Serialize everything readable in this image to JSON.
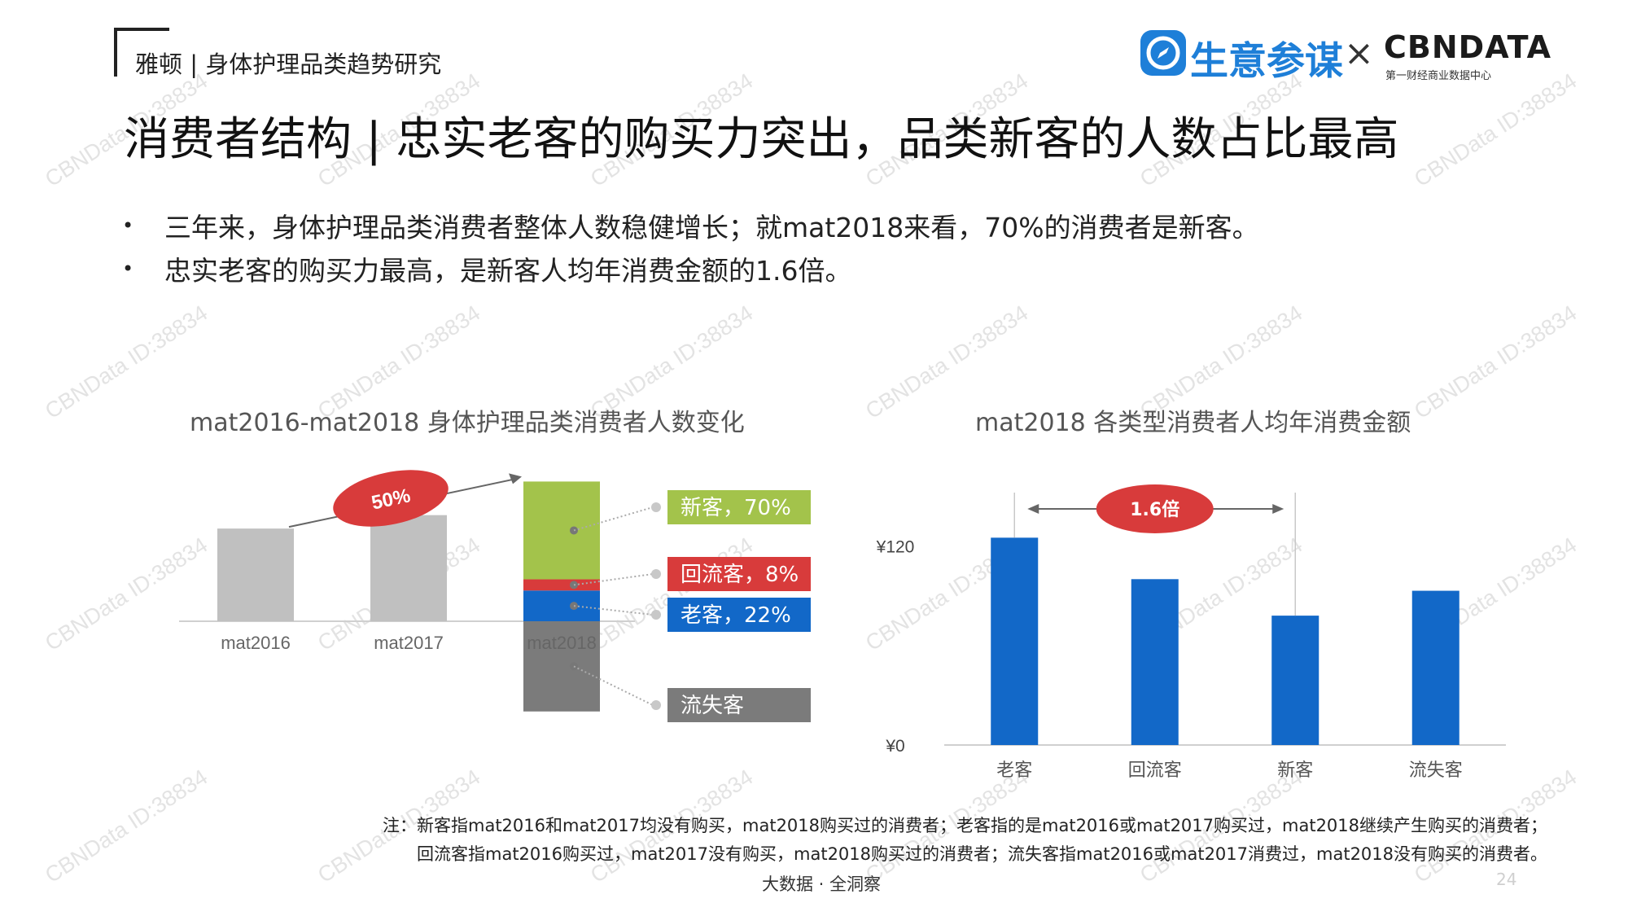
{
  "header": {
    "report_tag": "雅顿 | 身体护理品类趋势研究",
    "title": "消费者结构 | 忠实老客的购买力突出，品类新客的人数占比最高",
    "brand": "生意参谋",
    "times": "×",
    "partner": "CBNDATA",
    "partner_sub": "第一财经商业数据中心"
  },
  "bullets": [
    "三年来，身体护理品类消费者整体人数稳健增长；就mat2018来看，70%的消费者是新客。",
    "忠实老客的购买力最高，是新客人均年消费金额的1.6倍。"
  ],
  "bullet_symbol": "•",
  "watermark": "CBNData ID:38834",
  "colors": {
    "gray_bar": "#c0c0c0",
    "new": "#a3c34b",
    "returning": "#d83b3b",
    "old": "#1268c8",
    "lost": "#7b7b7b",
    "blue_bar": "#1268c8",
    "red_ellipse": "#d83b3b"
  },
  "chart_data": [
    {
      "type": "bar",
      "title": "mat2016-mat2018 身体护理品类消费者人数变化",
      "categories": [
        "mat2016",
        "mat2017",
        "mat2018"
      ],
      "values": [
        0.69,
        0.79,
        1.04
      ],
      "unit": "relative",
      "growth_label": "50%",
      "mat2018_breakdown": [
        {
          "name": "新客，70%",
          "key": "new",
          "share": 0.7
        },
        {
          "name": "回流客，8%",
          "key": "returning",
          "share": 0.08
        },
        {
          "name": "老客，22%",
          "key": "old",
          "share": 0.22
        },
        {
          "name": "流失客",
          "key": "lost",
          "share_of_prior": 0.85
        }
      ]
    },
    {
      "type": "bar",
      "title": "mat2018 各类型消费者人均年消费金额",
      "categories": [
        "老客",
        "回流客",
        "新客",
        "流失客"
      ],
      "values": [
        125,
        100,
        78,
        93
      ],
      "ylim": [
        0,
        135
      ],
      "yticks": [
        "¥0",
        "¥120"
      ],
      "ratio_label": "1.6倍"
    }
  ],
  "notes": [
    "注：新客指mat2016和mat2017均没有购买，mat2018购买过的消费者；老客指的是mat2016或mat2017购买过，mat2018继续产生购买的消费者；",
    "回流客指mat2016购买过，mat2017没有购买，mat2018购买过的消费者；流失客指mat2016或mat2017消费过，mat2018没有购买的消费者。"
  ],
  "footer": "大数据 · 全洞察",
  "page_number": "24"
}
